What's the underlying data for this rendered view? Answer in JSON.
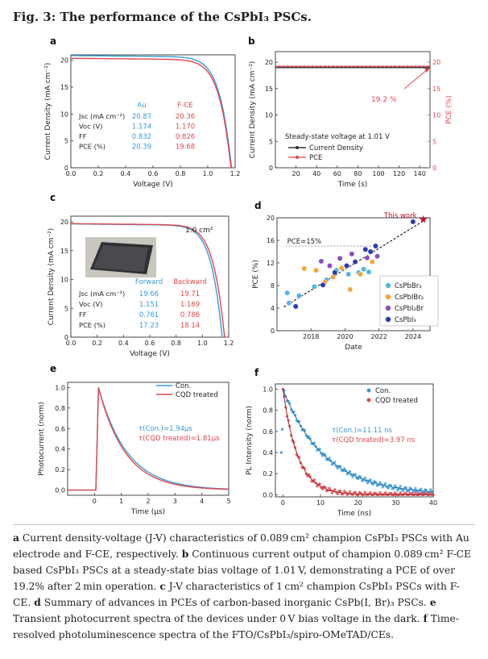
{
  "figure": {
    "title": "Fig. 3: The performance of the CsPbI₃ PSCs.",
    "panels": [
      "a",
      "b",
      "c",
      "d",
      "e",
      "f"
    ]
  },
  "caption": {
    "a_bold": "a",
    "a_text": " Current density-voltage (J-V) characteristics of 0.089 cm² champion CsPbI₃ PSCs with Au electrode and F-CE, respectively. ",
    "b_bold": "b",
    "b_text": " Continuous current output of champion 0.089 cm² F-CE based CsPbI₃ PSCs at a steady-state bias voltage of 1.01 V, demonstrating a PCE of over 19.2% after 2 min operation. ",
    "c_bold": "c",
    "c_text": " J-V characteristics of 1 cm² champion CsPbI₃ PSCs with F-CE. ",
    "d_bold": "d",
    "d_text": " Summary of advances in PCEs of carbon-based inorganic CsPb(I, Br)₃ PSCs. ",
    "e_bold": "e",
    "e_text": " Transient photocurrent spectra of the devices under 0 V bias voltage in the dark. ",
    "f_bold": "f",
    "f_text": " Time-resolved photoluminescence spectra of the FTO/CsPbI₃/spiro-OMeTAD/CEs."
  },
  "colors": {
    "blue": "#3a9ad9",
    "red": "#e0474c",
    "navy": "#2b3bb0",
    "orange": "#f5a53c",
    "purple": "#8a4fc0",
    "skyblue": "#5ab2e0"
  },
  "chart_data": [
    {
      "panel": "a",
      "type": "line",
      "xlabel": "Voltage (V)",
      "ylabel": "Current Density (mA cm⁻²)",
      "xlim": [
        0,
        1.2
      ],
      "ylim": [
        0,
        21
      ],
      "xticks": [
        "0.0",
        "0.2",
        "0.4",
        "0.6",
        "0.8",
        "1.0",
        "1.2"
      ],
      "yticks": [
        "0",
        "5",
        "10",
        "15",
        "20"
      ],
      "series": [
        {
          "name": "Au",
          "color": "#3a9ad9",
          "jsc": 20.87,
          "voc": 1.174,
          "ff": 0.832,
          "pce": 20.39
        },
        {
          "name": "F-CE",
          "color": "#e0474c",
          "jsc": 20.36,
          "voc": 1.17,
          "ff": 0.826,
          "pce": 19.68
        }
      ],
      "table": {
        "rows": [
          "Jsc (mA cm⁻²)",
          "Voc (V)",
          "FF",
          "PCE (%)"
        ],
        "au": [
          "20.87",
          "1.174",
          "0.832",
          "20.39"
        ],
        "fce": [
          "20.36",
          "1.170",
          "0.826",
          "19.68"
        ],
        "au_header": "Au",
        "fce_header": "F-CE"
      }
    },
    {
      "panel": "b",
      "type": "line",
      "xlabel": "Time (s)",
      "ylabel": "Current Density (mA cm⁻²)",
      "y2label": "PCE (%)",
      "xlim": [
        0,
        150
      ],
      "ylim": [
        0,
        22
      ],
      "y2lim": [
        0,
        22
      ],
      "xticks": [
        "20",
        "40",
        "60",
        "80",
        "100",
        "120",
        "140"
      ],
      "yticks": [
        "0",
        "5",
        "10",
        "15",
        "20"
      ],
      "y2ticks": [
        "0",
        "5",
        "10",
        "15",
        "20"
      ],
      "series": [
        {
          "name": "Current Density",
          "color": "#333333",
          "value": 19.0
        },
        {
          "name": "PCE",
          "color": "#e0474c",
          "value": 19.2
        }
      ],
      "annotation": "19.2 %",
      "legend_title": "Steady-state voltage at 1.01 V",
      "legend": [
        "Current Density",
        "PCE"
      ]
    },
    {
      "panel": "c",
      "type": "line",
      "xlabel": "Voltage (V)",
      "ylabel": "Current Density (mA cm⁻²)",
      "xlim": [
        0,
        1.2
      ],
      "ylim": [
        0,
        21
      ],
      "xticks": [
        "0.0",
        "0.2",
        "0.4",
        "0.6",
        "0.8",
        "1.0",
        "1.2"
      ],
      "yticks": [
        "0",
        "5",
        "10",
        "15",
        "20"
      ],
      "area_label": "1.0 cm²",
      "series": [
        {
          "name": "Forward",
          "color": "#3a9ad9",
          "jsc": 19.66,
          "voc": 1.151,
          "ff": 0.761,
          "pce": 17.23
        },
        {
          "name": "Backward",
          "color": "#e0474c",
          "jsc": 19.71,
          "voc": 1.169,
          "ff": 0.786,
          "pce": 18.14
        }
      ],
      "table": {
        "rows": [
          "Jsc (mA cm⁻²)",
          "Voc (V)",
          "FF",
          "PCE (%)"
        ],
        "fwd": [
          "19.66",
          "1.151",
          "0.761",
          "17.23"
        ],
        "bwd": [
          "19.71",
          "1.169",
          "0.786",
          "18.14"
        ],
        "fwd_header": "Forward",
        "bwd_header": "Backward"
      }
    },
    {
      "panel": "d",
      "type": "scatter",
      "xlabel": "Date",
      "ylabel": "PCE (%)",
      "xlim": [
        2016,
        2025
      ],
      "ylim": [
        0,
        20
      ],
      "xticks": [
        "2018",
        "2020",
        "2022",
        "2024"
      ],
      "yticks": [
        "0",
        "4",
        "8",
        "12",
        "16",
        "20"
      ],
      "reference_line": {
        "label": "PCE=15%",
        "value": 15
      },
      "this_work": {
        "label": "This work",
        "x": 2024.6,
        "y": 19.7
      },
      "legend": [
        "CsPbBr₃",
        "CsPbIBr₂",
        "CsPbI₂Br",
        "CsPbI₃"
      ],
      "series": [
        {
          "name": "CsPbBr₃",
          "color": "#5ab2e0",
          "points": [
            [
              2016.6,
              6.7
            ],
            [
              2016.7,
              4.9
            ],
            [
              2017.3,
              6.2
            ],
            [
              2018.2,
              7.8
            ],
            [
              2018.9,
              9.0
            ],
            [
              2019.5,
              10.7
            ],
            [
              2020.2,
              10.0
            ],
            [
              2020.8,
              10.3
            ],
            [
              2021.1,
              10.9
            ],
            [
              2021.4,
              10.4
            ]
          ]
        },
        {
          "name": "CsPbIBr₂",
          "color": "#f5a53c",
          "points": [
            [
              2017.6,
              11.0
            ],
            [
              2018.3,
              10.7
            ],
            [
              2018.8,
              8.6
            ],
            [
              2019.3,
              9.5
            ],
            [
              2019.8,
              11.1
            ],
            [
              2020.3,
              7.3
            ],
            [
              2020.9,
              10.0
            ],
            [
              2021.6,
              12.2
            ]
          ]
        },
        {
          "name": "CsPbI₂Br",
          "color": "#8a4fc0",
          "points": [
            [
              2018.6,
              12.3
            ],
            [
              2019.1,
              11.5
            ],
            [
              2019.7,
              12.8
            ],
            [
              2020.4,
              13.6
            ],
            [
              2021.3,
              12.9
            ],
            [
              2021.9,
              13.2
            ]
          ]
        },
        {
          "name": "CsPbI₃",
          "color": "#2b3bb0",
          "points": [
            [
              2017.1,
              4.3
            ],
            [
              2018.7,
              8.1
            ],
            [
              2019.4,
              10.3
            ],
            [
              2020.1,
              11.5
            ],
            [
              2020.6,
              12.2
            ],
            [
              2021.2,
              14.4
            ],
            [
              2021.5,
              14.0
            ],
            [
              2021.8,
              15.0
            ],
            [
              2024.0,
              19.3
            ]
          ]
        }
      ]
    },
    {
      "panel": "e",
      "type": "line",
      "xlabel": "Time (μs)",
      "ylabel": "Photocurrent (norm)",
      "xlim": [
        -1.0,
        5.0
      ],
      "ylim": [
        -0.05,
        1.05
      ],
      "xticks": [
        "0",
        "1",
        "2",
        "3",
        "4",
        "5"
      ],
      "yticks": [
        "0.0",
        "0.2",
        "0.4",
        "0.6",
        "0.8",
        "1.0"
      ],
      "series": [
        {
          "name": "Con.",
          "color": "#3a9ad9",
          "tau": "τ(Con.)=1.94μs"
        },
        {
          "name": "CQD treated",
          "color": "#e0474c",
          "tau": "τ(CQD treated)=1.81μs"
        }
      ]
    },
    {
      "panel": "f",
      "type": "scatter",
      "xlabel": "Time (ns)",
      "ylabel": "PL Intensity (norm)",
      "xlim": [
        -2,
        40
      ],
      "ylim": [
        -0.02,
        1.05
      ],
      "xticks": [
        "0",
        "10",
        "20",
        "30",
        "40"
      ],
      "yticks": [
        "0.0",
        "0.2",
        "0.4",
        "0.6",
        "0.8",
        "1.0"
      ],
      "series": [
        {
          "name": "Con.",
          "color": "#3a9ad9",
          "tau": "τ(Con.)=11.11 ns",
          "tau_value": 11.11
        },
        {
          "name": "CQD treated",
          "color": "#e0474c",
          "tau": "τ(CQD treated)=3.97 ns",
          "tau_value": 3.97
        }
      ]
    }
  ]
}
